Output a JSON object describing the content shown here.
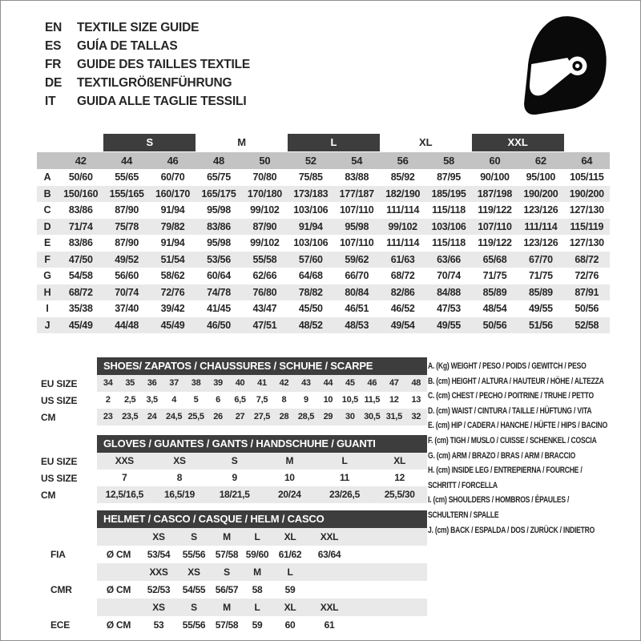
{
  "header": {
    "languages": [
      {
        "code": "EN",
        "title": "TEXTILE SIZE GUIDE"
      },
      {
        "code": "ES",
        "title": "GUÍA DE TALLAS"
      },
      {
        "code": "FR",
        "title": "GUIDE DES TAILLES TEXTILE"
      },
      {
        "code": "DE",
        "title": "TEXTILGRÖßENFÜHRUNG"
      },
      {
        "code": "IT",
        "title": "GUIDA ALLE TAGLIE TESSILI"
      }
    ],
    "icon": "full-face-racing-helmet"
  },
  "textile_table": {
    "size_groups": [
      {
        "label": "S",
        "style": "bar"
      },
      {
        "label": "M",
        "style": "plain"
      },
      {
        "label": "L",
        "style": "bar"
      },
      {
        "label": "XL",
        "style": "plain"
      },
      {
        "label": "XXL",
        "style": "bar"
      }
    ],
    "columns": [
      "42",
      "44",
      "46",
      "48",
      "50",
      "52",
      "54",
      "56",
      "58",
      "60",
      "62",
      "64"
    ],
    "rows": [
      {
        "label": "A",
        "values": [
          "50/60",
          "55/65",
          "60/70",
          "65/75",
          "70/80",
          "75/85",
          "83/88",
          "85/92",
          "87/95",
          "90/100",
          "95/100",
          "105/115"
        ]
      },
      {
        "label": "B",
        "values": [
          "150/160",
          "155/165",
          "160/170",
          "165/175",
          "170/180",
          "173/183",
          "177/187",
          "182/190",
          "185/195",
          "187/198",
          "190/200",
          "190/200"
        ]
      },
      {
        "label": "C",
        "values": [
          "83/86",
          "87/90",
          "91/94",
          "95/98",
          "99/102",
          "103/106",
          "107/110",
          "111/114",
          "115/118",
          "119/122",
          "123/126",
          "127/130"
        ]
      },
      {
        "label": "D",
        "values": [
          "71/74",
          "75/78",
          "79/82",
          "83/86",
          "87/90",
          "91/94",
          "95/98",
          "99/102",
          "103/106",
          "107/110",
          "111/114",
          "115/119"
        ]
      },
      {
        "label": "E",
        "values": [
          "83/86",
          "87/90",
          "91/94",
          "95/98",
          "99/102",
          "103/106",
          "107/110",
          "111/114",
          "115/118",
          "119/122",
          "123/126",
          "127/130"
        ]
      },
      {
        "label": "F",
        "values": [
          "47/50",
          "49/52",
          "51/54",
          "53/56",
          "55/58",
          "57/60",
          "59/62",
          "61/63",
          "63/66",
          "65/68",
          "67/70",
          "68/72"
        ]
      },
      {
        "label": "G",
        "values": [
          "54/58",
          "56/60",
          "58/62",
          "60/64",
          "62/66",
          "64/68",
          "66/70",
          "68/72",
          "70/74",
          "71/75",
          "71/75",
          "72/76"
        ]
      },
      {
        "label": "H",
        "values": [
          "68/72",
          "70/74",
          "72/76",
          "74/78",
          "76/80",
          "78/82",
          "80/84",
          "82/86",
          "84/88",
          "85/89",
          "85/89",
          "87/91"
        ]
      },
      {
        "label": "I",
        "values": [
          "35/38",
          "37/40",
          "39/42",
          "41/45",
          "43/47",
          "45/50",
          "46/51",
          "46/52",
          "47/53",
          "48/54",
          "49/55",
          "50/56"
        ]
      },
      {
        "label": "J",
        "values": [
          "45/49",
          "44/48",
          "45/49",
          "46/50",
          "47/51",
          "48/52",
          "48/53",
          "49/54",
          "49/55",
          "50/56",
          "51/56",
          "52/58"
        ]
      }
    ]
  },
  "shoes_table": {
    "title": "SHOES/ ZAPATOS / CHAUSSURES / SCHUHE / SCARPE",
    "rows": [
      {
        "label": "EU SIZE",
        "values": [
          "34",
          "35",
          "36",
          "37",
          "38",
          "39",
          "40",
          "41",
          "42",
          "43",
          "44",
          "45",
          "46",
          "47",
          "48"
        ]
      },
      {
        "label": "US SIZE",
        "values": [
          "2",
          "2,5",
          "3,5",
          "4",
          "5",
          "6",
          "6,5",
          "7,5",
          "8",
          "9",
          "10",
          "10,5",
          "11,5",
          "12",
          "13"
        ]
      },
      {
        "label": "CM",
        "values": [
          "23",
          "23,5",
          "24",
          "24,5",
          "25,5",
          "26",
          "27",
          "27,5",
          "28",
          "28,5",
          "29",
          "30",
          "30,5",
          "31,5",
          "32"
        ]
      }
    ]
  },
  "gloves_table": {
    "title": "GLOVES / GUANTES / GANTS / HANDSCHUHE / GUANTI",
    "rows": [
      {
        "label": "EU SIZE",
        "values": [
          "XXS",
          "XS",
          "S",
          "M",
          "L",
          "XL"
        ]
      },
      {
        "label": "US SIZE",
        "values": [
          "7",
          "8",
          "9",
          "10",
          "11",
          "12"
        ]
      },
      {
        "label": "CM",
        "values": [
          "12,5/16,5",
          "16,5/19",
          "18/21,5",
          "20/24",
          "23/26,5",
          "25,5/30"
        ]
      }
    ]
  },
  "helmet_table": {
    "title": "HELMET / CASCO / CASQUE / HELM / CASCO",
    "rows": [
      {
        "label": "",
        "values": [
          "",
          "XS",
          "S",
          "M",
          "L",
          "XL",
          "XXL"
        ]
      },
      {
        "label": "FIA",
        "values": [
          "Ø CM",
          "53/54",
          "55/56",
          "57/58",
          "59/60",
          "61/62",
          "63/64"
        ]
      },
      {
        "label": "",
        "values": [
          "",
          "XXS",
          "XS",
          "S",
          "M",
          "L",
          ""
        ]
      },
      {
        "label": "CMR",
        "values": [
          "Ø CM",
          "52/53",
          "54/55",
          "56/57",
          "58",
          "59",
          ""
        ]
      },
      {
        "label": "",
        "values": [
          "",
          "XS",
          "S",
          "M",
          "L",
          "XL",
          "XXL"
        ]
      },
      {
        "label": "ECE",
        "values": [
          "Ø CM",
          "53",
          "55/56",
          "57/58",
          "59",
          "60",
          "61"
        ]
      }
    ]
  },
  "legend": {
    "items": [
      {
        "lines": [
          "A. (Kg) WEIGHT / PESO / POIDS / GEWITCH / PESO"
        ]
      },
      {
        "lines": [
          "B. (cm) HEIGHT / ALTURA / HAUTEUR / HÖHE / ALTEZZA"
        ]
      },
      {
        "lines": [
          "C. (cm) CHEST / PECHO / POITRINE / TRUHE / PETTO"
        ]
      },
      {
        "lines": [
          "D. (cm) WAIST / CINTURA / TAILLE / HÜFTUNG / VITA"
        ]
      },
      {
        "lines": [
          "E. (cm) HIP / CADERA / HANCHE / HÜFTE / HIPS /  BACINO"
        ]
      },
      {
        "lines": [
          "F. (cm) TIGH / MUSLO / CUISSE / SCHENKEL / COSCIA"
        ]
      },
      {
        "lines": [
          "G. (cm) ARM  / BRAZO / BRAS / ARM / BRACCIO"
        ]
      },
      {
        "lines": [
          "H. (cm) INSIDE LEG / ENTREPIERNA / FOURCHE /",
          "SCHRITT / FORCELLA"
        ]
      },
      {
        "lines": [
          "I.  (cm) SHOULDERS / HOMBROS / ÉPAULES /",
          "SCHULTERN / SPALLE"
        ]
      },
      {
        "lines": [
          "J. (cm) BACK / ESPALDA / DOS / ZURÜCK / INDIETRO"
        ]
      }
    ]
  },
  "colors": {
    "bar_dark": "#3d3d3d",
    "band_gray": "#c3c3c3",
    "stripe_gray": "#e9e9e9",
    "helmet_black": "#0a0a0a"
  }
}
